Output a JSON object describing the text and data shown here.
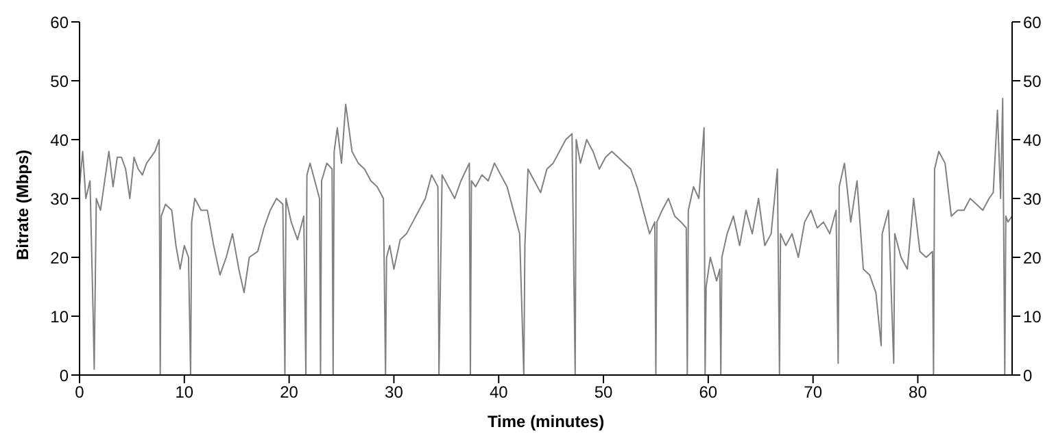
{
  "chart_data": {
    "type": "line",
    "xlabel": "Time (minutes)",
    "ylabel": "Bitrate (Mbps)",
    "xlim": [
      0,
      89
    ],
    "xticks": [
      0,
      10,
      20,
      30,
      40,
      50,
      60,
      70,
      80
    ],
    "ylim": [
      0,
      60
    ],
    "yticks": [
      0,
      10,
      20,
      30,
      40,
      50,
      60
    ],
    "y2lim": [
      0,
      60
    ],
    "y2ticks": [
      0,
      10,
      20,
      30,
      40,
      50,
      60
    ],
    "grid": false,
    "legend": false,
    "marker": "none",
    "line_style": "solid",
    "series": [
      {
        "color": "#808080",
        "x": [
          0,
          0.3,
          0.6,
          1,
          1.3,
          1.4,
          1.6,
          2,
          2.4,
          2.8,
          3.2,
          3.6,
          4,
          4.4,
          4.8,
          5.2,
          5.6,
          6,
          6.4,
          6.8,
          7.2,
          7.6,
          7.7,
          7.8,
          8.2,
          8.8,
          9.2,
          9.6,
          10,
          10.4,
          10.6,
          10.7,
          11,
          11.6,
          12.2,
          12.8,
          13.4,
          14,
          14.6,
          15.2,
          15.7,
          16.2,
          17,
          17.6,
          18.2,
          18.8,
          19.4,
          19.6,
          19.7,
          20.2,
          20.8,
          21.4,
          21.6,
          21.7,
          22,
          22.6,
          22.9,
          23,
          23.1,
          23.6,
          24.1,
          24.2,
          24.3,
          24.6,
          25,
          25.4,
          26,
          26.6,
          27.2,
          27.8,
          28.4,
          29,
          29.2,
          29.3,
          29.6,
          30,
          30.6,
          31.2,
          31.8,
          32.4,
          33,
          33.6,
          34.2,
          34.3,
          34.6,
          35.2,
          35.8,
          36.4,
          37.2,
          37.3,
          37.4,
          37.8,
          38.4,
          39,
          39.6,
          40.2,
          40.8,
          41.4,
          42,
          42.4,
          42.5,
          42.8,
          43.4,
          44,
          44.6,
          45.2,
          45.8,
          46.4,
          47,
          47.3,
          47.4,
          47.8,
          48.4,
          49,
          49.6,
          50.2,
          50.8,
          51.4,
          52,
          52.6,
          53.2,
          53.8,
          54.4,
          54.9,
          55,
          55.1,
          55.6,
          56.2,
          56.8,
          57.4,
          57.9,
          58,
          58.1,
          58.6,
          59.1,
          59.6,
          59.7,
          59.8,
          60.2,
          60.8,
          61.1,
          61.2,
          61.3,
          61.8,
          62.4,
          63,
          63.6,
          64.2,
          64.8,
          65.4,
          66,
          66.6,
          66.8,
          66.9,
          67.4,
          68,
          68.6,
          69.2,
          69.8,
          70.4,
          71,
          71.6,
          72.2,
          72.4,
          72.5,
          73,
          73.6,
          74.2,
          74.8,
          75.4,
          76,
          76.5,
          76.6,
          77.2,
          77.7,
          77.8,
          78.4,
          79,
          79.6,
          80.2,
          80.8,
          81.4,
          81.5,
          81.6,
          82,
          82.6,
          83.2,
          83.8,
          84.4,
          85,
          85.6,
          86.2,
          86.8,
          87.2,
          87.6,
          87.9,
          88.1,
          88.3,
          88.4,
          88.6,
          89
        ],
        "values": [
          32,
          38,
          30,
          33,
          10,
          1,
          30,
          28,
          33,
          38,
          32,
          37,
          37,
          35,
          30,
          37,
          35,
          34,
          36,
          37,
          38,
          40,
          0,
          27,
          29,
          28,
          22,
          18,
          22,
          20,
          0,
          26,
          30,
          28,
          28,
          22,
          17,
          20,
          24,
          18,
          14,
          20,
          21,
          25,
          28,
          30,
          29,
          0,
          30,
          26,
          23,
          27,
          0,
          34,
          36,
          32,
          30,
          0,
          33,
          36,
          35,
          0,
          38,
          42,
          36,
          46,
          38,
          36,
          35,
          33,
          32,
          30,
          0,
          20,
          22,
          18,
          23,
          24,
          26,
          28,
          30,
          34,
          32,
          0,
          34,
          32,
          30,
          33,
          36,
          0,
          33,
          32,
          34,
          33,
          36,
          34,
          32,
          28,
          24,
          0,
          22,
          35,
          33,
          31,
          35,
          36,
          38,
          40,
          41,
          0,
          40,
          36,
          40,
          38,
          35,
          37,
          38,
          37,
          36,
          35,
          32,
          28,
          24,
          26,
          0,
          26,
          28,
          30,
          27,
          26,
          25,
          0,
          28,
          32,
          30,
          42,
          0,
          15,
          20,
          16,
          18,
          0,
          20,
          24,
          27,
          22,
          28,
          24,
          30,
          22,
          24,
          35,
          0,
          24,
          22,
          24,
          20,
          26,
          28,
          25,
          26,
          24,
          28,
          2,
          32,
          36,
          26,
          33,
          18,
          17,
          14,
          5,
          24,
          28,
          2,
          24,
          20,
          18,
          30,
          21,
          20,
          21,
          0,
          35,
          38,
          36,
          27,
          28,
          28,
          30,
          29,
          28,
          30,
          31,
          45,
          30,
          47,
          0,
          27,
          26,
          27
        ]
      }
    ]
  }
}
